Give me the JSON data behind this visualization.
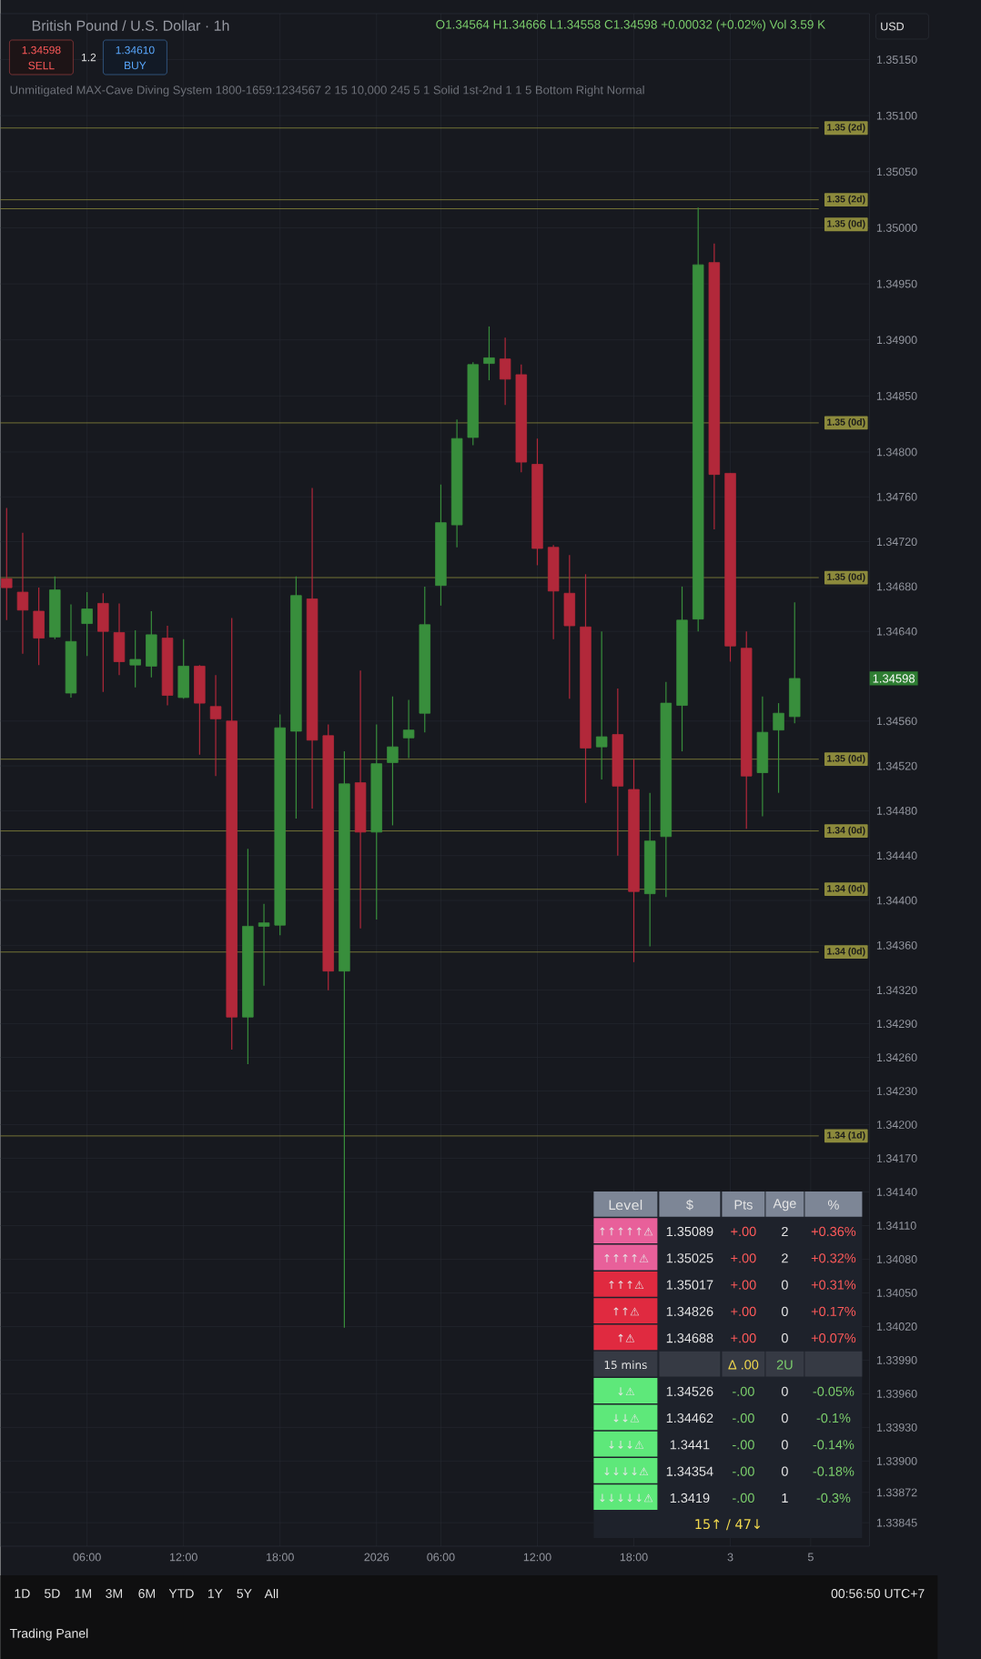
{
  "chart_data": {
    "type": "candlestick",
    "title": "British Pound / U.S. Dollar · 1h",
    "categories": [
      null,
      null,
      null,
      null,
      null,
      "06:00",
      null,
      null,
      null,
      null,
      null,
      "12:00",
      null,
      null,
      null,
      null,
      null,
      "18:00",
      null,
      null,
      null,
      null,
      null,
      "2026",
      null,
      null,
      null,
      "06:00",
      null,
      null,
      null,
      null,
      null,
      "12:00",
      null,
      null,
      null,
      null,
      null,
      "18:00",
      null,
      null,
      null,
      null,
      null,
      "3",
      null,
      null,
      null,
      null,
      "5"
    ],
    "ohlc": [
      [
        1.34687,
        1.3475,
        1.3465,
        1.34679
      ],
      [
        1.34675,
        1.34728,
        1.3462,
        1.34659
      ],
      [
        1.34658,
        1.34679,
        1.3461,
        1.34634
      ],
      [
        1.34635,
        1.34689,
        1.34633,
        1.34677
      ],
      [
        1.34585,
        1.34664,
        1.34581,
        1.34631
      ],
      [
        1.34647,
        1.34675,
        1.34618,
        1.3466
      ],
      [
        1.34665,
        1.34674,
        1.34586,
        1.3464
      ],
      [
        1.34639,
        1.34665,
        1.34601,
        1.34613
      ],
      [
        1.3461,
        1.34641,
        1.3459,
        1.34615
      ],
      [
        1.34609,
        1.34658,
        1.34599,
        1.34637
      ],
      [
        1.34634,
        1.34645,
        1.34574,
        1.34583
      ],
      [
        1.34581,
        1.34633,
        1.3458,
        1.34609
      ],
      [
        1.34609,
        1.3461,
        1.3453,
        1.34576
      ],
      [
        1.34573,
        1.34601,
        1.34511,
        1.34562
      ],
      [
        1.3456,
        1.34652,
        1.34267,
        1.34296
      ],
      [
        1.34296,
        1.34446,
        1.34254,
        1.34377
      ],
      [
        1.34377,
        1.34397,
        1.34324,
        1.3438
      ],
      [
        1.34378,
        1.34566,
        1.34369,
        1.34554
      ],
      [
        1.34551,
        1.34689,
        1.34473,
        1.34672
      ],
      [
        1.34669,
        1.34768,
        1.34482,
        1.34543
      ],
      [
        1.34547,
        1.34557,
        1.3432,
        1.34337
      ],
      [
        1.34337,
        1.34533,
        1.34019,
        1.34504
      ],
      [
        1.34505,
        1.34605,
        1.34375,
        1.34461
      ],
      [
        1.34461,
        1.34557,
        1.34383,
        1.34522
      ],
      [
        1.34523,
        1.34582,
        1.34467,
        1.34537
      ],
      [
        1.34545,
        1.34579,
        1.34527,
        1.34552
      ],
      [
        1.34567,
        1.3468,
        1.3455,
        1.34646
      ],
      [
        1.34681,
        1.34771,
        1.34663,
        1.34737
      ],
      [
        1.34735,
        1.34829,
        1.34715,
        1.34812
      ],
      [
        1.34813,
        1.3488,
        1.34806,
        1.34878
      ],
      [
        1.34879,
        1.34912,
        1.34864,
        1.34884
      ],
      [
        1.34883,
        1.34902,
        1.34842,
        1.34865
      ],
      [
        1.34869,
        1.34878,
        1.34782,
        1.34791
      ],
      [
        1.34789,
        1.34812,
        1.34699,
        1.34714
      ],
      [
        1.34715,
        1.34717,
        1.34633,
        1.34676
      ],
      [
        1.34674,
        1.34708,
        1.3458,
        1.34645
      ],
      [
        1.34644,
        1.34691,
        1.34487,
        1.34536
      ],
      [
        1.34537,
        1.3464,
        1.34508,
        1.34546
      ],
      [
        1.34548,
        1.34589,
        1.3444,
        1.34502
      ],
      [
        1.34499,
        1.34526,
        1.34345,
        1.34408
      ],
      [
        1.34406,
        1.34496,
        1.34359,
        1.34453
      ],
      [
        1.34457,
        1.34595,
        1.34403,
        1.34576
      ],
      [
        1.34574,
        1.3468,
        1.34533,
        1.3465
      ],
      [
        1.34651,
        1.35018,
        1.3464,
        1.34967
      ],
      [
        1.34969,
        1.34986,
        1.34731,
        1.3478
      ],
      [
        1.34781,
        1.34781,
        1.34613,
        1.34627
      ],
      [
        1.34625,
        1.3464,
        1.34464,
        1.34511
      ],
      [
        1.34514,
        1.34582,
        1.34475,
        1.3455
      ],
      [
        1.34552,
        1.34576,
        1.34496,
        1.34567
      ],
      [
        1.34564,
        1.34666,
        1.34558,
        1.34598
      ],
      null
    ],
    "colors": [
      "#b2283a",
      "#b2283a",
      "#b2283a",
      "#388e3c",
      "#388e3c",
      "#388e3c",
      "#b2283a",
      "#b2283a",
      "#388e3c",
      "#388e3c",
      "#b2283a",
      "#388e3c",
      "#b2283a",
      "#b2283a",
      "#b2283a",
      "#388e3c",
      "#388e3c",
      "#388e3c",
      "#388e3c",
      "#b2283a",
      "#b2283a",
      "#388e3c",
      "#b2283a",
      "#388e3c",
      "#388e3c",
      "#388e3c",
      "#388e3c",
      "#388e3c",
      "#388e3c",
      "#388e3c",
      "#388e3c",
      "#b2283a",
      "#b2283a",
      "#b2283a",
      "#b2283a",
      "#b2283a",
      "#b2283a",
      "#388e3c",
      "#b2283a",
      "#b2283a",
      "#388e3c",
      "#388e3c",
      "#388e3c",
      "#388e3c",
      "#b2283a",
      "#b2283a",
      "#b2283a",
      "#388e3c",
      "#388e3c",
      "#388e3c",
      null
    ],
    "ylim": [
      1.33824,
      1.35191
    ],
    "yticks": [
      {
        "value": 1.3515,
        "label": "1.35150"
      },
      {
        "value": 1.351,
        "label": "1.35100"
      },
      {
        "value": 1.3505,
        "label": "1.35050"
      },
      {
        "value": 1.35,
        "label": "1.35000"
      },
      {
        "value": 1.3495,
        "label": "1.34950"
      },
      {
        "value": 1.349,
        "label": "1.34900"
      },
      {
        "value": 1.3485,
        "label": "1.34850"
      },
      {
        "value": 1.348,
        "label": "1.34800"
      },
      {
        "value": 1.3476,
        "label": "1.34760"
      },
      {
        "value": 1.3472,
        "label": "1.34720"
      },
      {
        "value": 1.3468,
        "label": "1.34680"
      },
      {
        "value": 1.3464,
        "label": "1.34640"
      },
      {
        "value": 1.3456,
        "label": "1.34560"
      },
      {
        "value": 1.3452,
        "label": "1.34520"
      },
      {
        "value": 1.3448,
        "label": "1.34480"
      },
      {
        "value": 1.3444,
        "label": "1.34440"
      },
      {
        "value": 1.344,
        "label": "1.34400"
      },
      {
        "value": 1.3436,
        "label": "1.34360"
      },
      {
        "value": 1.3432,
        "label": "1.34320"
      },
      {
        "value": 1.3429,
        "label": "1.34290"
      },
      {
        "value": 1.3426,
        "label": "1.34260"
      },
      {
        "value": 1.3423,
        "label": "1.34230"
      },
      {
        "value": 1.342,
        "label": "1.34200"
      },
      {
        "value": 1.3417,
        "label": "1.34170"
      },
      {
        "value": 1.3414,
        "label": "1.34140"
      },
      {
        "value": 1.3411,
        "label": "1.34110"
      },
      {
        "value": 1.3408,
        "label": "1.34080"
      },
      {
        "value": 1.3405,
        "label": "1.34050"
      },
      {
        "value": 1.3402,
        "label": "1.34020"
      },
      {
        "value": 1.3399,
        "label": "1.33990"
      },
      {
        "value": 1.3396,
        "label": "1.33960"
      },
      {
        "value": 1.3393,
        "label": "1.33930"
      },
      {
        "value": 1.339,
        "label": "1.33900"
      },
      {
        "value": 1.33872,
        "label": "1.33872"
      },
      {
        "value": 1.33845,
        "label": "1.33845"
      }
    ],
    "grid": true,
    "ref_lines": [
      {
        "axis": "y",
        "value": 1.35089,
        "label": "1.35 (2d)",
        "color": "#8c8a3c"
      },
      {
        "axis": "y",
        "value": 1.35025,
        "label": "1.35 (2d)",
        "color": "#8c8a3c"
      },
      {
        "axis": "y",
        "value": 1.35017,
        "label": "1.35 (0d)",
        "color": "#8c8a3c"
      },
      {
        "axis": "y",
        "value": 1.34826,
        "label": "1.35 (0d)",
        "color": "#8c8a3c"
      },
      {
        "axis": "y",
        "value": 1.34688,
        "label": "1.35 (0d)",
        "color": "#8c8a3c"
      },
      {
        "axis": "y",
        "value": 1.34526,
        "label": "1.35 (0d)",
        "color": "#8c8a3c"
      },
      {
        "axis": "y",
        "value": 1.34462,
        "label": "1.34 (0d)",
        "color": "#8c8a3c"
      },
      {
        "axis": "y",
        "value": 1.3441,
        "label": "1.34 (0d)",
        "color": "#8c8a3c"
      },
      {
        "axis": "y",
        "value": 1.34354,
        "label": "1.34 (0d)",
        "color": "#8c8a3c"
      },
      {
        "axis": "y",
        "value": 1.3419,
        "label": "1.34 (1d)",
        "color": "#8c8a3c"
      }
    ],
    "annotations": [
      "1.34598",
      "O1.34564 H1.34666 L1.34558 C1.34598 +0.00032 (+0.02%) Vol 3.59 K",
      "1.34598",
      "SELL",
      "1.2",
      "1.34610",
      "BUY",
      "Unmitigated MAX-Cave Diving System 1800-1659:1234567 2 15 10,000 245 5 1 Solid 1st-2nd 1 1 5 Bottom Right Normal",
      "USD",
      "1D",
      "5D",
      "1M",
      "3M",
      "6M",
      "YTD",
      "1Y",
      "5Y",
      "All",
      "00:56:50 UTC+7",
      "Trading Panel",
      "Level",
      "$",
      "Pts",
      "Age",
      "%",
      "↑↑↑↑↑⚠",
      "1.35089",
      "+.00",
      "2",
      "+0.36%",
      "↑↑↑↑⚠",
      "1.35025",
      "+.00",
      "2",
      "+0.32%",
      "↑↑↑⚠",
      "1.35017",
      "+.00",
      "0",
      "+0.31%",
      "↑↑⚠",
      "1.34826",
      "+.00",
      "0",
      "+0.17%",
      "↑⚠",
      "1.34688",
      "+.00",
      "0",
      "+0.07%",
      "15 mins",
      "Δ .00",
      "2U",
      "↓⚠",
      "1.34526",
      "-.00",
      "0",
      "-0.05%",
      "↓↓⚠",
      "1.34462",
      "-.00",
      "0",
      "-0.1%",
      "↓↓↓⚠",
      "1.3441",
      "-.00",
      "0",
      "-0.14%",
      "↓↓↓↓⚠",
      "1.34354",
      "-.00",
      "0",
      "-0.18%",
      "↓↓↓↓↓⚠",
      "1.3419",
      "-.00",
      "1",
      "-0.3%",
      "15↑ / 47↓"
    ]
  }
}
